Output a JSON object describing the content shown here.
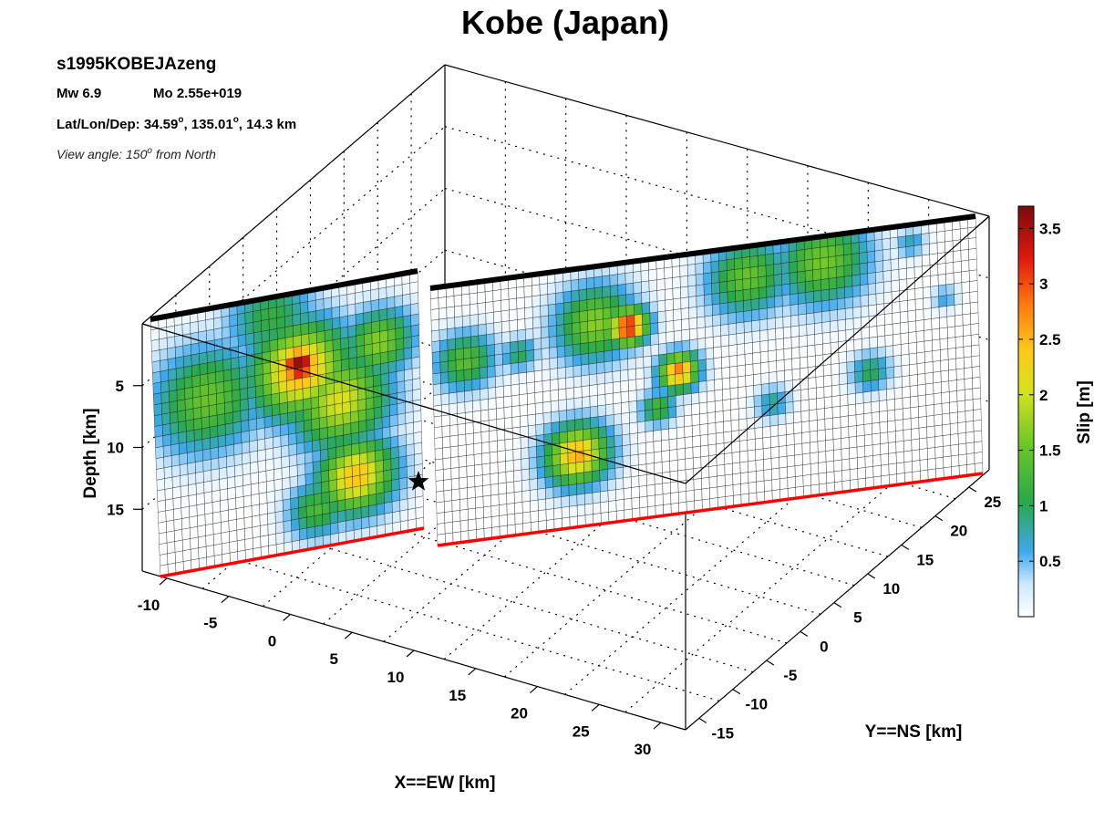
{
  "header": {
    "title": "Kobe (Japan)",
    "model_name": "s1995KOBEJAzeng",
    "mw_label": "Mw 6.9",
    "mo_label": "Mo 2.55e+019",
    "latlon_label": "Lat/Lon/Dep: 34.59",
    "latlon_lon": ", 135.01",
    "latlon_dep": ", 14.3 km",
    "deg_symbol": "o",
    "view_label": "View angle: 150",
    "view_suffix": " from North"
  },
  "colors": {
    "grid_line": "#000000",
    "surface_trace": "#000000",
    "bottom_trace": "#ff0000",
    "hypocenter": "#000000",
    "background": "#ffffff"
  },
  "chart_data": {
    "type": "heatmap",
    "subtype": "3d-fault-slip",
    "title": "Kobe (Japan)",
    "xlabel": "X==EW [km]",
    "ylabel": "Y==NS [km]",
    "zlabel": "Depth [km]",
    "x_ticks": [
      "-10",
      "-5",
      "0",
      "5",
      "10",
      "15",
      "20",
      "25",
      "30"
    ],
    "y_ticks": [
      "-15",
      "-10",
      "-5",
      "0",
      "5",
      "10",
      "15",
      "20",
      "25"
    ],
    "z_ticks": [
      "5",
      "10",
      "15"
    ],
    "xlim": [
      -12,
      32
    ],
    "ylim": [
      -17,
      28
    ],
    "zlim": [
      0,
      20
    ],
    "view_azimuth_deg": 150,
    "grid": true,
    "colorbar": {
      "label": "Slip [m]",
      "range": [
        0,
        3.7
      ],
      "ticks": [
        "0.5",
        "1",
        "1.5",
        "2",
        "2.5",
        "3",
        "3.5"
      ],
      "colormap": "white-blue-green-yellow-red-darkred",
      "placement": "right"
    },
    "hypocenter": {
      "lat": 34.59,
      "lon": 135.01,
      "depth_km": 14.3,
      "marker": "star"
    },
    "segments": [
      {
        "name": "segment-1",
        "rows": 24,
        "cols": 34,
        "peak_slip_m": 3.6,
        "slip_patches": [
          {
            "u": 0.2,
            "v": 0.35,
            "radius": 0.22,
            "slip": 1.4
          },
          {
            "u": 0.55,
            "v": 0.3,
            "radius": 0.2,
            "slip": 2.6
          },
          {
            "u": 0.55,
            "v": 0.28,
            "radius": 0.1,
            "slip": 3.6
          },
          {
            "u": 0.7,
            "v": 0.45,
            "radius": 0.2,
            "slip": 2.0
          },
          {
            "u": 0.75,
            "v": 0.75,
            "radius": 0.16,
            "slip": 2.4
          },
          {
            "u": 0.6,
            "v": 0.85,
            "radius": 0.12,
            "slip": 1.2
          },
          {
            "u": 0.85,
            "v": 0.25,
            "radius": 0.14,
            "slip": 1.6
          },
          {
            "u": 0.45,
            "v": 0.08,
            "radius": 0.18,
            "slip": 1.0
          }
        ]
      },
      {
        "name": "segment-2",
        "rows": 24,
        "cols": 70,
        "peak_slip_m": 3.3,
        "slip_patches": [
          {
            "u": 0.06,
            "v": 0.3,
            "radius": 0.12,
            "slip": 1.3
          },
          {
            "u": 0.16,
            "v": 0.3,
            "radius": 0.07,
            "slip": 0.9
          },
          {
            "u": 0.3,
            "v": 0.22,
            "radius": 0.16,
            "slip": 1.6
          },
          {
            "u": 0.36,
            "v": 0.25,
            "radius": 0.08,
            "slip": 3.3
          },
          {
            "u": 0.26,
            "v": 0.72,
            "radius": 0.13,
            "slip": 2.5
          },
          {
            "u": 0.45,
            "v": 0.45,
            "radius": 0.08,
            "slip": 2.8
          },
          {
            "u": 0.41,
            "v": 0.58,
            "radius": 0.07,
            "slip": 1.2
          },
          {
            "u": 0.58,
            "v": 0.12,
            "radius": 0.16,
            "slip": 1.4
          },
          {
            "u": 0.72,
            "v": 0.1,
            "radius": 0.18,
            "slip": 1.5
          },
          {
            "u": 0.8,
            "v": 0.55,
            "radius": 0.08,
            "slip": 0.9
          },
          {
            "u": 0.88,
            "v": 0.07,
            "radius": 0.06,
            "slip": 0.6
          },
          {
            "u": 0.62,
            "v": 0.62,
            "radius": 0.07,
            "slip": 0.7
          },
          {
            "u": 0.94,
            "v": 0.3,
            "radius": 0.05,
            "slip": 0.5
          }
        ]
      }
    ]
  }
}
